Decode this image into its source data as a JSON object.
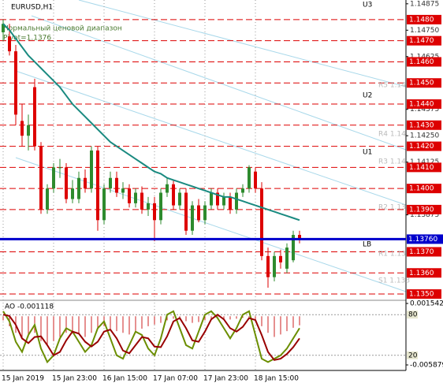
{
  "chart_data": {
    "type": "candlestick",
    "title": "EURUSD,H1",
    "subtitle": "Нормальный ценовой диапазон",
    "pivot_label": "Pivot=1.1376",
    "categories": [
      "15 Jan 2019",
      null,
      null,
      null,
      null,
      null,
      null,
      null,
      "15 Jan 23:00",
      null,
      null,
      null,
      null,
      null,
      null,
      null,
      "16 Jan 15:00",
      null,
      null,
      null,
      null,
      null,
      null,
      null,
      "17 Jan 07:00",
      null,
      null,
      null,
      null,
      null,
      null,
      null,
      "17 Jan 23:00",
      null,
      null,
      null,
      null,
      null,
      null,
      null,
      "18 Jan 15:00",
      null,
      null,
      null,
      null,
      null,
      null,
      null
    ],
    "open": [
      1.1474,
      1.1472,
      1.1465,
      1.1432,
      1.1425,
      1.1448,
      1.142,
      1.139,
      1.14,
      1.141,
      1.141,
      1.1395,
      1.1395,
      1.1405,
      1.14,
      1.1418,
      1.1385,
      1.14,
      1.1405,
      1.1398,
      1.14,
      1.1393,
      1.1398,
      1.139,
      1.1393,
      1.1385,
      1.1398,
      1.1402,
      1.1392,
      1.1398,
      1.138,
      1.1392,
      1.1385,
      1.1392,
      1.1398,
      1.1392,
      1.1396,
      1.139,
      1.1398,
      1.14,
      1.1408,
      1.14,
      1.1368,
      1.1358,
      1.1368,
      1.1362,
      1.1366,
      1.1378
    ],
    "high": [
      1.148,
      1.1478,
      1.1468,
      1.144,
      1.1435,
      1.1452,
      1.1422,
      1.1402,
      1.1412,
      1.1414,
      1.1412,
      1.1404,
      1.1408,
      1.1409,
      1.142,
      1.142,
      1.1402,
      1.1408,
      1.1408,
      1.1403,
      1.1402,
      1.14,
      1.1401,
      1.1396,
      1.1396,
      1.14,
      1.1405,
      1.1404,
      1.14,
      1.14,
      1.1394,
      1.1395,
      1.1394,
      1.14,
      1.14,
      1.1398,
      1.1398,
      1.14,
      1.1402,
      1.1411,
      1.141,
      1.1403,
      1.1372,
      1.137,
      1.1371,
      1.1374,
      1.138,
      1.138
    ],
    "low": [
      1.147,
      1.1463,
      1.143,
      1.142,
      1.1418,
      1.1418,
      1.1388,
      1.1388,
      1.1398,
      1.1405,
      1.1393,
      1.1393,
      1.1393,
      1.1398,
      1.1398,
      1.138,
      1.1383,
      1.1398,
      1.1396,
      1.1395,
      1.1391,
      1.1391,
      1.1388,
      1.1387,
      1.1375,
      1.1383,
      1.1396,
      1.139,
      1.139,
      1.1378,
      1.1378,
      1.1384,
      1.1383,
      1.139,
      1.139,
      1.139,
      1.1388,
      1.1388,
      1.1396,
      1.1398,
      1.1398,
      1.1366,
      1.1353,
      1.1356,
      1.1362,
      1.136,
      1.1365,
      1.1374
    ],
    "close": [
      1.1478,
      1.1465,
      1.1435,
      1.1425,
      1.143,
      1.142,
      1.139,
      1.14,
      1.141,
      1.141,
      1.1395,
      1.14,
      1.1405,
      1.14,
      1.1418,
      1.1385,
      1.14,
      1.1405,
      1.1398,
      1.14,
      1.1393,
      1.1398,
      1.139,
      1.1393,
      1.1385,
      1.1398,
      1.1402,
      1.1392,
      1.1398,
      1.138,
      1.1392,
      1.1385,
      1.1392,
      1.1398,
      1.1392,
      1.1396,
      1.139,
      1.1398,
      1.14,
      1.141,
      1.14,
      1.1368,
      1.1358,
      1.1368,
      1.1365,
      1.1372,
      1.1378,
      1.1376
    ],
    "up_color": "#2e8b2e",
    "down_color": "#dd0000",
    "ma": {
      "color": "#1a8a80",
      "values": [
        1.1478,
        1.1475,
        1.1471,
        1.1467,
        1.1463,
        1.146,
        1.1457,
        1.1454,
        1.1451,
        1.1448,
        1.1444,
        1.144,
        1.1437,
        1.1434,
        1.1431,
        1.1428,
        1.1425,
        1.1422,
        1.142,
        1.1418,
        1.1416,
        1.1414,
        1.1412,
        1.141,
        1.1408,
        1.1407,
        1.1405,
        1.1404,
        1.1403,
        1.1402,
        1.1401,
        1.14,
        1.1399,
        1.1398,
        1.1397,
        1.1396,
        1.1396,
        1.1395,
        1.1394,
        1.1393,
        1.1392,
        1.1391,
        1.139,
        1.1389,
        1.1388,
        1.1387,
        1.1386,
        1.1385
      ]
    },
    "ylim": [
      1.13474,
      1.14893
    ],
    "levels": [
      {
        "value": 1.148,
        "label": "1.1480"
      },
      {
        "value": 1.147,
        "label": "1.1470"
      },
      {
        "value": 1.146,
        "label": "1.1460"
      },
      {
        "value": 1.145,
        "label": "1.1450"
      },
      {
        "value": 1.144,
        "label": "1.1440"
      },
      {
        "value": 1.143,
        "label": "1.1430"
      },
      {
        "value": 1.142,
        "label": "1.1420"
      },
      {
        "value": 1.141,
        "label": "1.1410"
      },
      {
        "value": 1.14,
        "label": "1.1400"
      },
      {
        "value": 1.139,
        "label": "1.1390"
      },
      {
        "value": 1.137,
        "label": "1.1370"
      },
      {
        "value": 1.136,
        "label": "1.1360"
      },
      {
        "value": 1.135,
        "label": "1.1350"
      }
    ],
    "level_color": "#dd0000",
    "yticks": [
      1.14875,
      {
        "value": 1.1475,
        "label": "1.14750"
      },
      1.14625,
      1.14375,
      {
        "value": 1.1425,
        "label": "1.14250"
      },
      1.14125,
      1.13875
    ],
    "price": {
      "value": 1.1376,
      "label": "1.13760"
    },
    "price_color": "#0000cc",
    "annotations": [
      "U3",
      "U2",
      "U1",
      "LB",
      "R5 1.14",
      "R4 1.14",
      "R3 1.14",
      "R2 1.13",
      "R1 1.13",
      "S1 1.133"
    ],
    "oscillator": {
      "title": "AO -0.001118",
      "ylim": [
        -0.005879,
        0.001542
      ],
      "yticks": [
        0.001542,
        -0.005879
      ],
      "histogram_color": "#cc2222",
      "histogram": [
        -0.0005,
        -0.0012,
        -0.002,
        -0.0028,
        -0.0025,
        -0.002,
        -0.003,
        -0.0035,
        -0.003,
        -0.0025,
        -0.002,
        -0.0018,
        -0.0022,
        -0.0025,
        -0.002,
        -0.0015,
        -0.0012,
        -0.0015,
        -0.0018,
        -0.002,
        -0.0022,
        -0.0018,
        -0.0015,
        -0.0012,
        -0.001,
        -0.0008,
        -0.0005,
        -0.0003,
        -0.0004,
        -0.0006,
        -0.0008,
        -0.0007,
        -0.0005,
        -0.0003,
        -0.0002,
        -0.0003,
        -0.0004,
        -0.0003,
        -0.0002,
        -0.0001,
        -0.0004,
        -0.0012,
        -0.002,
        -0.0025,
        -0.0022,
        -0.0018,
        -0.0014,
        -0.0011
      ],
      "stoch_ylim": [
        0,
        100
      ],
      "stoch_levels": [
        80,
        20
      ],
      "lines": [
        {
          "color": "#6b8e00",
          "values": [
            85,
            70,
            40,
            25,
            50,
            65,
            30,
            10,
            20,
            45,
            60,
            55,
            40,
            25,
            35,
            60,
            70,
            45,
            20,
            15,
            35,
            55,
            50,
            30,
            20,
            45,
            80,
            85,
            60,
            35,
            30,
            55,
            80,
            85,
            75,
            60,
            45,
            60,
            80,
            85,
            50,
            15,
            10,
            15,
            20,
            30,
            45,
            60
          ]
        },
        {
          "color": "#990000",
          "values": [
            80,
            78,
            65,
            45,
            38,
            47,
            48,
            35,
            20,
            25,
            42,
            55,
            52,
            40,
            33,
            40,
            55,
            58,
            45,
            27,
            23,
            35,
            47,
            45,
            33,
            32,
            48,
            70,
            75,
            60,
            42,
            40,
            55,
            73,
            80,
            73,
            60,
            55,
            62,
            75,
            72,
            50,
            25,
            13,
            15,
            22,
            32,
            45
          ]
        }
      ]
    }
  }
}
